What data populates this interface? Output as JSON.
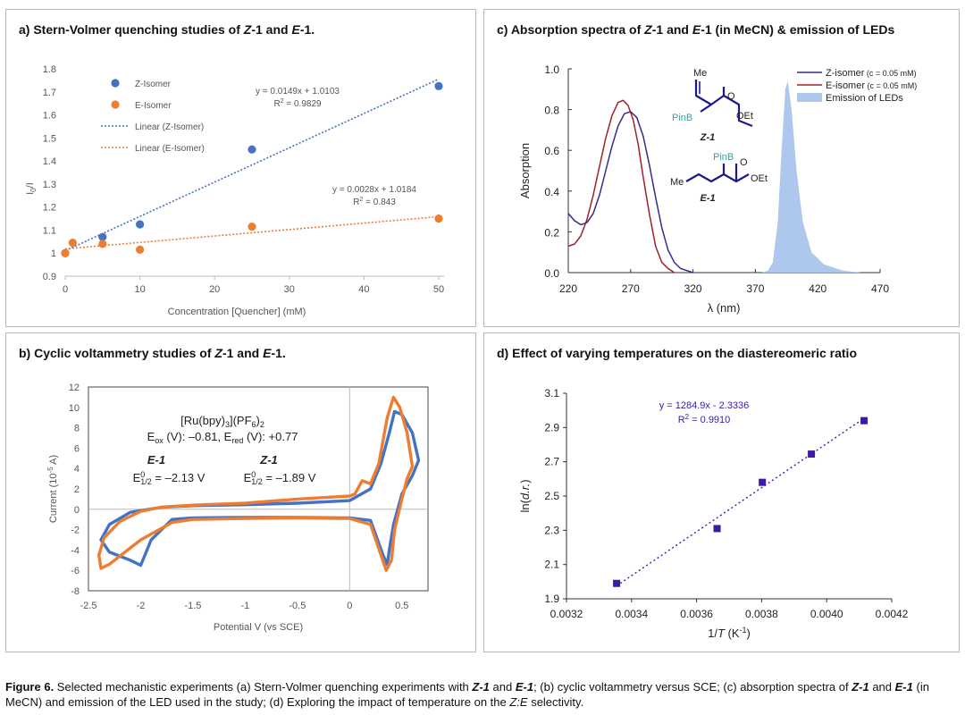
{
  "panels": {
    "a": {
      "title": "a) Stern-Volmer quenching studies of Z-1 and E-1.",
      "chart_data": {
        "type": "scatter",
        "xlabel": "Concentration [Quencher] (mM)",
        "ylabel": "I0/I",
        "xlim": [
          0,
          50
        ],
        "ylim": [
          0.9,
          1.8
        ],
        "xticks": [
          "0",
          "10",
          "20",
          "30",
          "40",
          "50"
        ],
        "yticks": [
          "0.9",
          "1",
          "1.1",
          "1.2",
          "1.3",
          "1.4",
          "1.5",
          "1.6",
          "1.7",
          "1.8"
        ],
        "legend_position": "top-left",
        "series": [
          {
            "name": "Z-Isomer",
            "color": "#4472c4",
            "points": [
              [
                0,
                1.0
              ],
              [
                5,
                1.07
              ],
              [
                10,
                1.125
              ],
              [
                25,
                1.45
              ],
              [
                50,
                1.725
              ]
            ],
            "fit": {
              "name": "Linear (Z-Isomer)",
              "slope": 0.0149,
              "intercept": 1.0103,
              "equation": "y = 0.0149x + 1.0103",
              "r2": "R2 = 0.9829"
            }
          },
          {
            "name": "E-Isomer",
            "color": "#ed7d31",
            "points": [
              [
                0,
                1.0
              ],
              [
                1,
                1.045
              ],
              [
                5,
                1.04
              ],
              [
                10,
                1.015
              ],
              [
                25,
                1.115
              ],
              [
                50,
                1.15
              ]
            ],
            "fit": {
              "name": "Linear (E-Isomer)",
              "slope": 0.0028,
              "intercept": 1.0184,
              "equation": "y = 0.0028x + 1.0184",
              "r2": "R2 = 0.843"
            }
          }
        ]
      }
    },
    "b": {
      "title": "b) Cyclic voltammetry studies of Z-1 and E-1.",
      "chart_data": {
        "type": "line",
        "xlabel": "Potential V (vs SCE)",
        "ylabel": "Current (10-5 A)",
        "xlim": [
          -2.5,
          0.75
        ],
        "ylim": [
          -8,
          12
        ],
        "xticks": [
          "-2.5",
          "-2",
          "-1.5",
          "-1",
          "-0.5",
          "0",
          "0.5"
        ],
        "yticks": [
          "-8",
          "-6",
          "-4",
          "-2",
          "0",
          "2",
          "4",
          "6",
          "8",
          "10",
          "12"
        ],
        "series": [
          {
            "name": "blue trace",
            "color": "#4472c4",
            "points": [
              [
                -0.5,
                0.6
              ],
              [
                -1,
                0.45
              ],
              [
                -1.5,
                0.35
              ],
              [
                -1.8,
                0.2
              ],
              [
                -2.1,
                -0.3
              ],
              [
                -2.3,
                -1.5
              ],
              [
                -2.38,
                -3.0
              ],
              [
                -2.3,
                -4.2
              ],
              [
                -2.1,
                -5.0
              ],
              [
                -2.0,
                -5.5
              ],
              [
                -1.9,
                -3.0
              ],
              [
                -1.7,
                -1.0
              ],
              [
                -1.5,
                -0.85
              ],
              [
                -1.0,
                -0.8
              ],
              [
                -0.5,
                -0.8
              ],
              [
                0,
                -0.85
              ],
              [
                0.2,
                -1.1
              ],
              [
                0.32,
                -4.5
              ],
              [
                0.36,
                -5.4
              ],
              [
                0.38,
                -4.0
              ],
              [
                0.42,
                -1.5
              ],
              [
                0.5,
                1.5
              ],
              [
                0.6,
                3.3
              ],
              [
                0.66,
                4.8
              ],
              [
                0.6,
                7.5
              ],
              [
                0.5,
                9.3
              ],
              [
                0.43,
                9.6
              ],
              [
                0.38,
                7.5
              ],
              [
                0.3,
                4.5
              ],
              [
                0.2,
                2.0
              ],
              [
                0,
                0.85
              ],
              [
                -0.5,
                0.6
              ]
            ]
          },
          {
            "name": "orange trace",
            "color": "#ed7d31",
            "points": [
              [
                -0.5,
                1.0
              ],
              [
                -1,
                0.6
              ],
              [
                -1.5,
                0.4
              ],
              [
                -1.8,
                0.2
              ],
              [
                -2.0,
                -0.2
              ],
              [
                -2.2,
                -1.2
              ],
              [
                -2.35,
                -2.8
              ],
              [
                -2.4,
                -4.5
              ],
              [
                -2.38,
                -5.8
              ],
              [
                -2.3,
                -5.4
              ],
              [
                -2.0,
                -3.0
              ],
              [
                -1.7,
                -1.3
              ],
              [
                -1.5,
                -1.0
              ],
              [
                -1.0,
                -0.9
              ],
              [
                -0.5,
                -0.85
              ],
              [
                0,
                -0.9
              ],
              [
                0.2,
                -1.5
              ],
              [
                0.3,
                -4.5
              ],
              [
                0.35,
                -6.0
              ],
              [
                0.4,
                -5.0
              ],
              [
                0.43,
                -2.0
              ],
              [
                0.5,
                1.0
              ],
              [
                0.55,
                3.0
              ],
              [
                0.6,
                4.2
              ],
              [
                0.55,
                7.5
              ],
              [
                0.48,
                10.0
              ],
              [
                0.42,
                11.0
              ],
              [
                0.36,
                9.0
              ],
              [
                0.28,
                4.5
              ],
              [
                0.2,
                2.5
              ],
              [
                0.12,
                2.8
              ],
              [
                0.05,
                1.5
              ],
              [
                0,
                1.3
              ],
              [
                -0.5,
                1.0
              ]
            ]
          }
        ],
        "annotation": {
          "ru_line1": "[Ru(bpy)3](PF6)2",
          "ru_line2": "Eox (V): –0.81, Ered (V): +0.77",
          "e1_label": "E-1",
          "e1_value": "E01/2 = –2.13 V",
          "z1_label": "Z-1",
          "z1_value": "E01/2 = –1.89 V"
        }
      }
    },
    "c": {
      "title": "c) Absorption spectra of Z-1 and E-1 (in MeCN) & emission of LEDs",
      "chart_data": {
        "type": "line",
        "xlabel": "λ (nm)",
        "ylabel": "Absorption",
        "xlim": [
          220,
          470
        ],
        "ylim": [
          0,
          1.0
        ],
        "xticks": [
          "220",
          "270",
          "320",
          "370",
          "420",
          "470"
        ],
        "yticks": [
          "0.0",
          "0.2",
          "0.4",
          "0.6",
          "0.8",
          "1.0"
        ],
        "legend_position": "top-right",
        "series": [
          {
            "name": "Z-isomer (c = 0.05 mM)",
            "color": "#3a2a8a",
            "points": [
              [
                220,
                0.29
              ],
              [
                225,
                0.255
              ],
              [
                230,
                0.235
              ],
              [
                235,
                0.245
              ],
              [
                240,
                0.29
              ],
              [
                245,
                0.38
              ],
              [
                250,
                0.5
              ],
              [
                255,
                0.62
              ],
              [
                260,
                0.72
              ],
              [
                265,
                0.78
              ],
              [
                270,
                0.79
              ],
              [
                275,
                0.76
              ],
              [
                280,
                0.67
              ],
              [
                285,
                0.53
              ],
              [
                290,
                0.37
              ],
              [
                295,
                0.22
              ],
              [
                300,
                0.11
              ],
              [
                305,
                0.05
              ],
              [
                310,
                0.02
              ],
              [
                320,
                0.0
              ]
            ]
          },
          {
            "name": "E-isomer (c = 0.05 mM)",
            "color": "#a0202a",
            "points": [
              [
                220,
                0.13
              ],
              [
                225,
                0.14
              ],
              [
                230,
                0.18
              ],
              [
                235,
                0.26
              ],
              [
                240,
                0.38
              ],
              [
                245,
                0.52
              ],
              [
                250,
                0.66
              ],
              [
                255,
                0.77
              ],
              [
                260,
                0.835
              ],
              [
                264,
                0.845
              ],
              [
                268,
                0.82
              ],
              [
                272,
                0.75
              ],
              [
                276,
                0.63
              ],
              [
                280,
                0.47
              ],
              [
                285,
                0.29
              ],
              [
                290,
                0.13
              ],
              [
                295,
                0.05
              ],
              [
                300,
                0.02
              ],
              [
                305,
                0.0
              ]
            ]
          },
          {
            "name": "Emission of LEDs",
            "color": "#aec7ec",
            "points": [
              [
                375,
                0.0
              ],
              [
                380,
                0.01
              ],
              [
                384,
                0.05
              ],
              [
                388,
                0.25
              ],
              [
                391,
                0.6
              ],
              [
                394,
                0.9
              ],
              [
                396,
                0.94
              ],
              [
                399,
                0.8
              ],
              [
                403,
                0.5
              ],
              [
                408,
                0.25
              ],
              [
                415,
                0.1
              ],
              [
                425,
                0.04
              ],
              [
                440,
                0.01
              ],
              [
                455,
                0.0
              ]
            ]
          }
        ],
        "structures": {
          "z1_me": "Me",
          "z1_pinb": "PinB",
          "z1_o": "O",
          "z1_oet": "OEt",
          "z1_name": "Z-1",
          "e1_me": "Me",
          "e1_pinb": "PinB",
          "e1_o": "O",
          "e1_oet": "OEt",
          "e1_name": "E-1"
        }
      }
    },
    "d": {
      "title": "d) Effect of varying temperatures on the diastereomeric ratio",
      "chart_data": {
        "type": "scatter",
        "xlabel": "1/T (K-1)",
        "ylabel": "ln(d.r.)",
        "xlim": [
          0.0032,
          0.0042
        ],
        "ylim": [
          1.9,
          3.1
        ],
        "xticks": [
          "0.0032",
          "0.0034",
          "0.0036",
          "0.0038",
          "0.0040",
          "0.0042"
        ],
        "yticks": [
          "1.9",
          "2.1",
          "2.3",
          "2.5",
          "2.7",
          "2.9",
          "3.1"
        ],
        "series": [
          {
            "name": "ln(d.r.)",
            "color": "#3b1aa6",
            "points": [
              [
                0.003354,
                1.99
              ],
              [
                0.003663,
                2.31
              ],
              [
                0.003802,
                2.58
              ],
              [
                0.003953,
                2.745
              ],
              [
                0.004115,
                2.94
              ]
            ],
            "fit": {
              "slope": 1284.9,
              "intercept": -2.3336,
              "equation": "y = 1284.9x - 2.3336",
              "r2": "R2 = 0.9910"
            }
          }
        ]
      }
    }
  },
  "caption": {
    "figure_label": "Figure 6.",
    "text_1": " Selected mechanistic experiments (a) Stern-Volmer quenching experiments with ",
    "z1": "Z-1",
    "and": " and ",
    "e1": "E-1",
    "text_2": "; (b) cyclic voltammetry versus SCE; (c) absorption spectra of ",
    "text_3": " (in MeCN) and emission of the LED used in the study; (d) Exploring the impact of temperature on the ",
    "ze": "Z:E",
    "text_4": " selectivity."
  }
}
